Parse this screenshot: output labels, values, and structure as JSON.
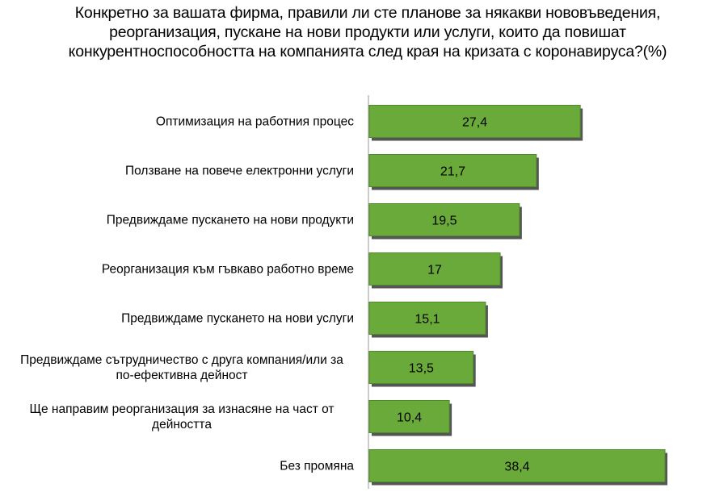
{
  "chart_data": {
    "type": "bar",
    "orientation": "horizontal",
    "title": "Конкретно за вашата фирма, правили ли сте планове за някакви нововъведения, реорганизация, пускане на нови продукти или услуги, които да повишат конкурентноспособността на компанията след края на кризата с коронавируса?(%)",
    "categories": [
      [
        "Оптимизация на работния процес"
      ],
      [
        "Ползване на повече електронни услуги"
      ],
      [
        "Предвиждаме пускането на нови продукти"
      ],
      [
        "Реорганизация към гъвкаво работно време"
      ],
      [
        "Предвиждаме пускането на нови услуги"
      ],
      [
        "Предвиждаме сътрудничество с друга компания/или за",
        "по-ефективна дейност"
      ],
      [
        "Ще направим реорганизация за изнасяне на част от",
        "дейността"
      ],
      [
        "Без промяна"
      ]
    ],
    "values": [
      27.4,
      21.7,
      19.5,
      17,
      15.1,
      13.5,
      10.4,
      38.4
    ],
    "value_labels": [
      "27,4",
      "21,7",
      "19,5",
      "17",
      "15,1",
      "13,5",
      "10,4",
      "38,4"
    ],
    "xlim": [
      0,
      38.4
    ],
    "bar_color": "#6aaa3a",
    "bar_edge_color": "#4f8a2a",
    "shadow_color": "#555555",
    "axis_color": "#999999",
    "grid": false,
    "legend": "none"
  }
}
